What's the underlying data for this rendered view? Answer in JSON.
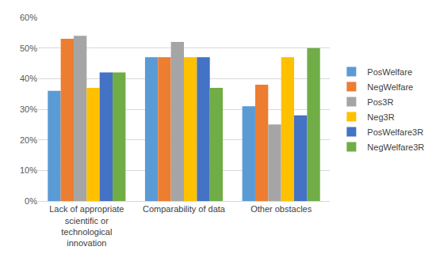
{
  "chart_data": {
    "type": "bar",
    "categories": [
      "Lack of appropriate scientific or technological innovation",
      "Comparability of data",
      "Other obstacles"
    ],
    "series": [
      {
        "name": "PosWelfare",
        "color": "#5b9bd5",
        "values": [
          36,
          47,
          31
        ]
      },
      {
        "name": "NegWelfare",
        "color": "#ed7d31",
        "values": [
          53,
          47,
          38
        ]
      },
      {
        "name": "Pos3R",
        "color": "#a5a5a5",
        "values": [
          54,
          52,
          25
        ]
      },
      {
        "name": "Neg3R",
        "color": "#ffc000",
        "values": [
          37,
          47,
          47
        ]
      },
      {
        "name": "PosWelfare3R",
        "color": "#4472c4",
        "values": [
          42,
          47,
          28
        ]
      },
      {
        "name": "NegWelfare3R",
        "color": "#70ad47",
        "values": [
          42,
          37,
          50
        ]
      }
    ],
    "ylim": [
      0,
      60
    ],
    "yticks": [
      {
        "value": 0,
        "label": "0%"
      },
      {
        "value": 10,
        "label": "10%"
      },
      {
        "value": 20,
        "label": "20%"
      },
      {
        "value": 30,
        "label": "30%"
      },
      {
        "value": 40,
        "label": "40%"
      },
      {
        "value": 50,
        "label": "50%"
      },
      {
        "value": 60,
        "label": "60%"
      }
    ],
    "grid": true,
    "legend": "right"
  }
}
